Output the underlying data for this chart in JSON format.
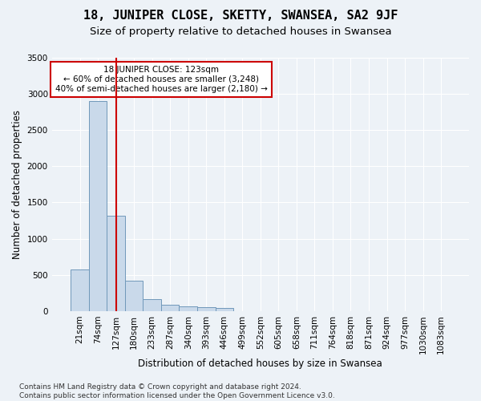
{
  "title": "18, JUNIPER CLOSE, SKETTY, SWANSEA, SA2 9JF",
  "subtitle": "Size of property relative to detached houses in Swansea",
  "xlabel": "Distribution of detached houses by size in Swansea",
  "ylabel": "Number of detached properties",
  "bins": [
    "21sqm",
    "74sqm",
    "127sqm",
    "180sqm",
    "233sqm",
    "287sqm",
    "340sqm",
    "393sqm",
    "446sqm",
    "499sqm",
    "552sqm",
    "605sqm",
    "658sqm",
    "711sqm",
    "764sqm",
    "818sqm",
    "871sqm",
    "924sqm",
    "977sqm",
    "1030sqm",
    "1083sqm"
  ],
  "bar_values": [
    570,
    2900,
    1320,
    415,
    160,
    90,
    65,
    55,
    45,
    0,
    0,
    0,
    0,
    0,
    0,
    0,
    0,
    0,
    0,
    0,
    0
  ],
  "bar_color": "#c9d9ea",
  "bar_edge_color": "#7098ba",
  "vline_x": 2,
  "vline_color": "#cc0000",
  "annotation_text": "18 JUNIPER CLOSE: 123sqm\n← 60% of detached houses are smaller (3,248)\n40% of semi-detached houses are larger (2,180) →",
  "annotation_box_color": "#ffffff",
  "annotation_box_edge_color": "#cc0000",
  "ylim": [
    0,
    3500
  ],
  "yticks": [
    0,
    500,
    1000,
    1500,
    2000,
    2500,
    3000,
    3500
  ],
  "bg_color": "#edf2f7",
  "plot_bg_color": "#edf2f7",
  "footer": "Contains HM Land Registry data © Crown copyright and database right 2024.\nContains public sector information licensed under the Open Government Licence v3.0.",
  "title_fontsize": 11,
  "subtitle_fontsize": 9.5,
  "xlabel_fontsize": 8.5,
  "ylabel_fontsize": 8.5,
  "tick_fontsize": 7.5,
  "footer_fontsize": 6.5
}
